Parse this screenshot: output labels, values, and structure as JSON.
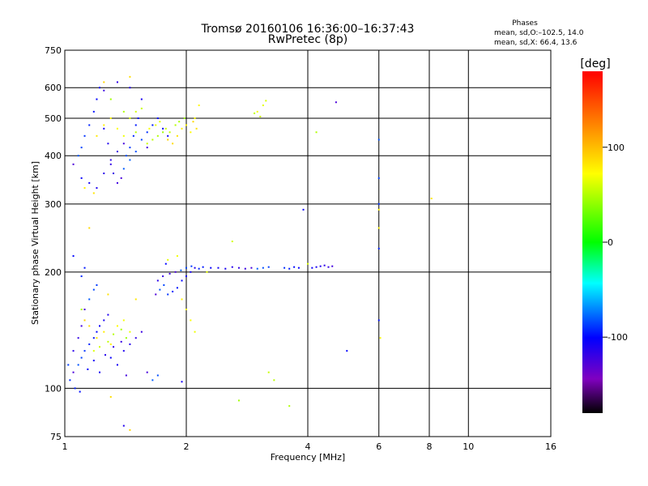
{
  "chart_data": {
    "type": "scatter",
    "title": "Tromsø 20160106 16:36:00–16:37:43",
    "subtitle": "RwPretec (8p)",
    "xlabel": "Frequency [MHz]",
    "ylabel": "Stationary phase Virtual Height [km]",
    "x_scale": "log",
    "y_scale": "log",
    "xlim": [
      1,
      16
    ],
    "ylim": [
      75,
      750
    ],
    "x_ticks": [
      "1",
      "2",
      "4",
      "6",
      "8",
      "10",
      "16"
    ],
    "y_ticks": [
      "75",
      "100",
      "200",
      "300",
      "400",
      "500",
      "600",
      "750"
    ],
    "grid": true,
    "stats": {
      "header": "Phases",
      "line_o": "mean, sd,O:–102.5, 14.0",
      "line_x": "mean, sd,X:  66.4, 13.6"
    },
    "colorbar": {
      "label": "[deg]",
      "range": [
        -180,
        180
      ],
      "ticks": [
        "100",
        "0",
        "-100"
      ],
      "colors": [
        "#ff0000",
        "#ffff00",
        "#00ff00",
        "#00ffff",
        "#0000ff",
        "#8000c0",
        "#000000"
      ]
    },
    "series": [
      {
        "mode": "O",
        "phase": -102.5,
        "points": [
          [
            1.05,
            380
          ],
          [
            1.08,
            400
          ],
          [
            1.1,
            420
          ],
          [
            1.12,
            450
          ],
          [
            1.15,
            480
          ],
          [
            1.18,
            520
          ],
          [
            1.2,
            560
          ],
          [
            1.22,
            600
          ],
          [
            1.25,
            470
          ],
          [
            1.28,
            430
          ],
          [
            1.3,
            390
          ],
          [
            1.32,
            360
          ],
          [
            1.35,
            340
          ],
          [
            1.38,
            350
          ],
          [
            1.4,
            370
          ],
          [
            1.42,
            400
          ],
          [
            1.45,
            420
          ],
          [
            1.48,
            450
          ],
          [
            1.5,
            480
          ],
          [
            1.52,
            500
          ],
          [
            1.1,
            350
          ],
          [
            1.15,
            340
          ],
          [
            1.2,
            330
          ],
          [
            1.25,
            360
          ],
          [
            1.3,
            380
          ],
          [
            1.35,
            410
          ],
          [
            1.4,
            430
          ],
          [
            1.45,
            390
          ],
          [
            1.5,
            410
          ],
          [
            1.55,
            440
          ],
          [
            1.6,
            460
          ],
          [
            1.65,
            480
          ],
          [
            1.7,
            500
          ],
          [
            1.75,
            470
          ],
          [
            1.8,
            450
          ],
          [
            1.55,
            560
          ],
          [
            1.45,
            600
          ],
          [
            1.35,
            620
          ],
          [
            1.25,
            590
          ],
          [
            1.6,
            420
          ],
          [
            1.05,
            110
          ],
          [
            1.08,
            115
          ],
          [
            1.1,
            120
          ],
          [
            1.12,
            125
          ],
          [
            1.15,
            130
          ],
          [
            1.18,
            135
          ],
          [
            1.2,
            140
          ],
          [
            1.22,
            145
          ],
          [
            1.25,
            150
          ],
          [
            1.28,
            155
          ],
          [
            1.05,
            125
          ],
          [
            1.08,
            135
          ],
          [
            1.1,
            145
          ],
          [
            1.12,
            160
          ],
          [
            1.15,
            170
          ],
          [
            1.18,
            180
          ],
          [
            1.2,
            185
          ],
          [
            1.1,
            195
          ],
          [
            1.12,
            205
          ],
          [
            1.05,
            220
          ],
          [
            1.3,
            120
          ],
          [
            1.35,
            115
          ],
          [
            1.4,
            125
          ],
          [
            1.45,
            130
          ],
          [
            1.5,
            135
          ],
          [
            1.55,
            140
          ],
          [
            1.6,
            110
          ],
          [
            1.65,
            105
          ],
          [
            1.7,
            108
          ],
          [
            1.02,
            115
          ],
          [
            1.03,
            105
          ],
          [
            1.06,
            100
          ],
          [
            1.09,
            98
          ],
          [
            1.14,
            112
          ],
          [
            1.18,
            118
          ],
          [
            1.22,
            110
          ],
          [
            1.26,
            122
          ],
          [
            1.32,
            128
          ],
          [
            1.38,
            132
          ],
          [
            1.42,
            108
          ],
          [
            1.68,
            175
          ],
          [
            1.72,
            180
          ],
          [
            1.76,
            185
          ],
          [
            1.8,
            175
          ],
          [
            1.85,
            178
          ],
          [
            1.9,
            182
          ],
          [
            1.95,
            190
          ],
          [
            2.0,
            195
          ],
          [
            2.05,
            200
          ],
          [
            2.1,
            205
          ],
          [
            1.7,
            190
          ],
          [
            1.75,
            195
          ],
          [
            1.82,
            198
          ],
          [
            1.88,
            200
          ],
          [
            1.94,
            202
          ],
          [
            2.0,
            205
          ],
          [
            2.06,
            207
          ],
          [
            2.15,
            204
          ],
          [
            2.2,
            206
          ],
          [
            1.78,
            210
          ],
          [
            2.3,
            205
          ],
          [
            2.4,
            205
          ],
          [
            2.5,
            204
          ],
          [
            2.6,
            206
          ],
          [
            2.7,
            205
          ],
          [
            2.8,
            204
          ],
          [
            2.9,
            205
          ],
          [
            3.0,
            204
          ],
          [
            3.1,
            205
          ],
          [
            3.2,
            206
          ],
          [
            3.5,
            205
          ],
          [
            3.6,
            204
          ],
          [
            3.7,
            206
          ],
          [
            3.8,
            205
          ],
          [
            4.1,
            205
          ],
          [
            4.2,
            206
          ],
          [
            4.3,
            207
          ],
          [
            4.4,
            208
          ],
          [
            4.5,
            206
          ],
          [
            4.6,
            207
          ],
          [
            4.7,
            550
          ],
          [
            6.0,
            440
          ],
          [
            6.0,
            350
          ],
          [
            6.0,
            300
          ],
          [
            6.0,
            230
          ],
          [
            6.0,
            150
          ],
          [
            5.0,
            125
          ],
          [
            3.9,
            290
          ],
          [
            1.95,
            104
          ],
          [
            1.4,
            80
          ]
        ]
      },
      {
        "mode": "X",
        "phase": 66.4,
        "points": [
          [
            1.6,
            430
          ],
          [
            1.65,
            440
          ],
          [
            1.7,
            450
          ],
          [
            1.75,
            460
          ],
          [
            1.8,
            440
          ],
          [
            1.85,
            430
          ],
          [
            1.9,
            450
          ],
          [
            1.95,
            470
          ],
          [
            2.0,
            480
          ],
          [
            2.05,
            460
          ],
          [
            1.62,
            470
          ],
          [
            1.68,
            480
          ],
          [
            1.72,
            490
          ],
          [
            1.78,
            470
          ],
          [
            1.82,
            460
          ],
          [
            1.88,
            480
          ],
          [
            1.92,
            490
          ],
          [
            1.98,
            500
          ],
          [
            2.08,
            490
          ],
          [
            2.12,
            470
          ],
          [
            1.2,
            450
          ],
          [
            1.25,
            480
          ],
          [
            1.3,
            500
          ],
          [
            1.35,
            470
          ],
          [
            1.4,
            450
          ],
          [
            1.45,
            500
          ],
          [
            1.5,
            520
          ],
          [
            1.55,
            530
          ],
          [
            1.5,
            460
          ],
          [
            1.4,
            520
          ],
          [
            1.3,
            560
          ],
          [
            1.25,
            620
          ],
          [
            1.45,
            640
          ],
          [
            1.18,
            320
          ],
          [
            1.12,
            330
          ],
          [
            2.15,
            540
          ],
          [
            2.1,
            500
          ],
          [
            3.0,
            520
          ],
          [
            3.1,
            540
          ],
          [
            3.15,
            555
          ],
          [
            3.05,
            505
          ],
          [
            2.95,
            515
          ],
          [
            4.2,
            460
          ],
          [
            1.1,
            160
          ],
          [
            1.12,
            150
          ],
          [
            1.15,
            145
          ],
          [
            1.2,
            135
          ],
          [
            1.25,
            140
          ],
          [
            1.3,
            130
          ],
          [
            1.35,
            145
          ],
          [
            1.4,
            150
          ],
          [
            1.45,
            140
          ],
          [
            1.18,
            125
          ],
          [
            1.22,
            128
          ],
          [
            1.28,
            132
          ],
          [
            1.32,
            138
          ],
          [
            1.38,
            142
          ],
          [
            1.42,
            135
          ],
          [
            1.15,
            260
          ],
          [
            1.28,
            175
          ],
          [
            1.5,
            170
          ],
          [
            1.95,
            170
          ],
          [
            2.0,
            160
          ],
          [
            2.05,
            150
          ],
          [
            2.1,
            140
          ],
          [
            1.8,
            215
          ],
          [
            2.6,
            240
          ],
          [
            3.2,
            110
          ],
          [
            3.3,
            105
          ],
          [
            3.6,
            90
          ],
          [
            2.7,
            93
          ],
          [
            1.45,
            78
          ],
          [
            1.3,
            95
          ],
          [
            8.1,
            310
          ],
          [
            6.0,
            290
          ],
          [
            6.0,
            260
          ],
          [
            6.05,
            135
          ],
          [
            1.9,
            220
          ],
          [
            2.25,
            200
          ],
          [
            4.0,
            210
          ]
        ]
      }
    ]
  }
}
